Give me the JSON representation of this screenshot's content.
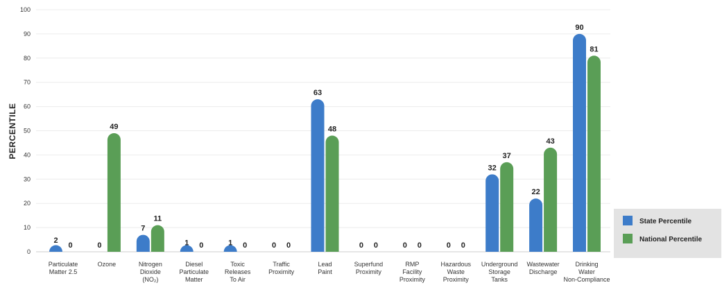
{
  "chart_data": {
    "type": "bar",
    "ylabel": "PERCENTILE",
    "ylim": [
      0,
      100
    ],
    "yticks": [
      0,
      10,
      20,
      30,
      40,
      50,
      60,
      70,
      80,
      90,
      100
    ],
    "grid": true,
    "legend_position": "bottom-right",
    "categories": [
      [
        "Particulate",
        "Matter 2.5"
      ],
      [
        "Ozone"
      ],
      [
        "Nitrogen",
        "Dioxide",
        "(NO₂)"
      ],
      [
        "Diesel",
        "Particulate",
        "Matter"
      ],
      [
        "Toxic",
        "Releases",
        "To Air"
      ],
      [
        "Traffic",
        "Proximity"
      ],
      [
        "Lead",
        "Paint"
      ],
      [
        "Superfund",
        "Proximity"
      ],
      [
        "RMP",
        "Facility",
        "Proximity"
      ],
      [
        "Hazardous",
        "Waste",
        "Proximity"
      ],
      [
        "Underground",
        "Storage",
        "Tanks"
      ],
      [
        "Wastewater",
        "Discharge"
      ],
      [
        "Drinking",
        "Water",
        "Non-Compliance"
      ]
    ],
    "series": [
      {
        "name": "State Percentile",
        "color": "#3d7cc9",
        "values": [
          2,
          0,
          7,
          1,
          1,
          0,
          63,
          0,
          0,
          0,
          32,
          22,
          90
        ]
      },
      {
        "name": "National Percentile",
        "color": "#5a9e56",
        "values": [
          0,
          49,
          11,
          0,
          0,
          0,
          48,
          0,
          0,
          0,
          37,
          43,
          81
        ]
      }
    ]
  }
}
